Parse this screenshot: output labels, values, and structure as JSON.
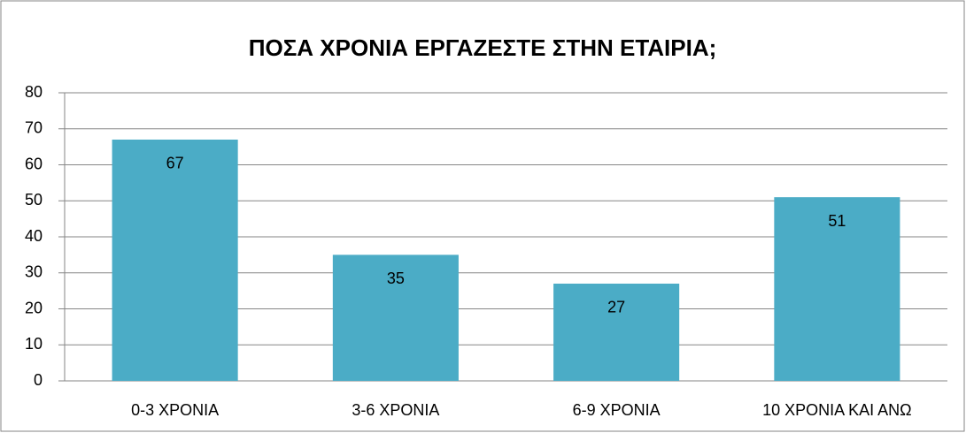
{
  "chart_data": {
    "type": "bar",
    "title": "ΠΟΣΑ ΧΡΟΝΙΑ ΕΡΓΑΖΕΣΤΕ ΣΤΗΝ ΕΤΑΙΡΙΑ;",
    "categories": [
      "0-3 ΧΡΟΝΙΑ",
      "3-6 ΧΡΟΝΙΑ",
      "6-9 ΧΡΟΝΙΑ",
      "10 ΧΡΟΝΙΑ ΚΑΙ ΑΝΩ"
    ],
    "values": [
      67,
      35,
      27,
      51
    ],
    "color": "#4bacc6",
    "ylim": [
      0,
      80
    ],
    "yticks": [
      0,
      10,
      20,
      30,
      40,
      50,
      60,
      70,
      80
    ],
    "grid": true
  }
}
